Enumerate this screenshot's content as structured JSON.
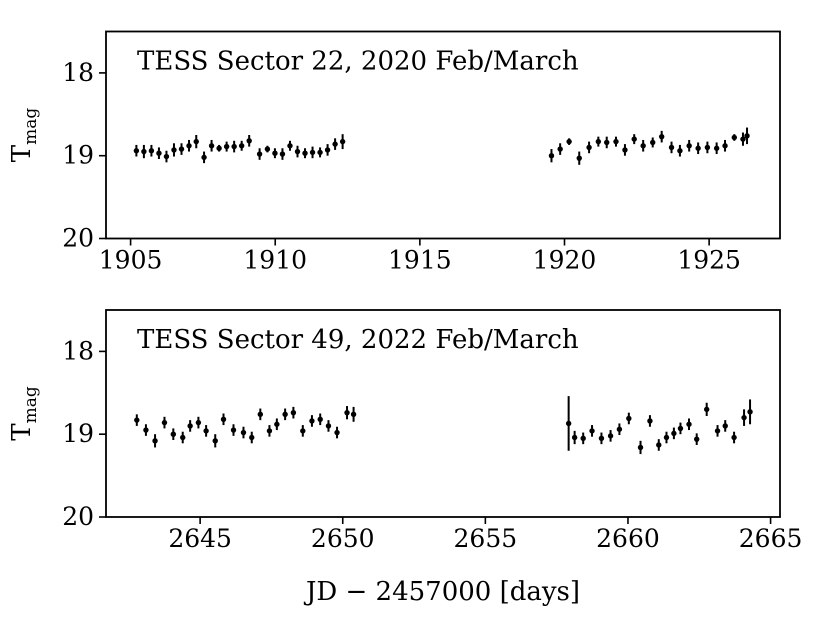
{
  "figure": {
    "background": "#ffffff",
    "foreground": "#000000",
    "xlabel": "JD − 2457000 [days]",
    "ylabel_base": "T",
    "ylabel_sub": "mag"
  },
  "chart_data": [
    {
      "type": "scatter",
      "title": "TESS Sector 22, 2020 Feb/March",
      "xlim": [
        1904.15,
        1927.45
      ],
      "ylim": [
        17.5,
        20.0
      ],
      "y_axis_inverted": true,
      "grid": false,
      "legend": "none",
      "xticks": [
        1905,
        1910,
        1915,
        1920,
        1925
      ],
      "yticks": [
        18,
        19,
        20
      ],
      "marker": "filled-circle-with-errorbar",
      "color": "#000000",
      "points_format": [
        "jd_minus_2457000_days",
        "t_mag",
        "err_mag"
      ],
      "points": [
        [
          1905.2,
          18.94,
          0.07
        ],
        [
          1905.46,
          18.95,
          0.08
        ],
        [
          1905.72,
          18.94,
          0.07
        ],
        [
          1905.98,
          18.97,
          0.07
        ],
        [
          1906.24,
          19.01,
          0.07
        ],
        [
          1906.5,
          18.93,
          0.08
        ],
        [
          1906.76,
          18.92,
          0.07
        ],
        [
          1907.02,
          18.88,
          0.07
        ],
        [
          1907.27,
          18.83,
          0.08
        ],
        [
          1907.54,
          19.02,
          0.07
        ],
        [
          1907.8,
          18.88,
          0.07
        ],
        [
          1908.06,
          18.91,
          0.04
        ],
        [
          1908.32,
          18.89,
          0.06
        ],
        [
          1908.58,
          18.89,
          0.07
        ],
        [
          1908.84,
          18.88,
          0.06
        ],
        [
          1909.1,
          18.82,
          0.07
        ],
        [
          1909.46,
          18.98,
          0.07
        ],
        [
          1909.73,
          18.92,
          0.04
        ],
        [
          1909.99,
          18.97,
          0.06
        ],
        [
          1910.25,
          18.98,
          0.07
        ],
        [
          1910.51,
          18.88,
          0.06
        ],
        [
          1910.77,
          18.95,
          0.07
        ],
        [
          1911.03,
          18.97,
          0.06
        ],
        [
          1911.29,
          18.96,
          0.07
        ],
        [
          1911.55,
          18.96,
          0.06
        ],
        [
          1911.81,
          18.93,
          0.07
        ],
        [
          1912.07,
          18.86,
          0.07
        ],
        [
          1912.33,
          18.83,
          0.09
        ],
        [
          1919.55,
          19.0,
          0.08
        ],
        [
          1919.85,
          18.92,
          0.07
        ],
        [
          1920.16,
          18.83,
          0.04
        ],
        [
          1920.51,
          19.03,
          0.08
        ],
        [
          1920.85,
          18.9,
          0.07
        ],
        [
          1921.17,
          18.83,
          0.06
        ],
        [
          1921.46,
          18.84,
          0.07
        ],
        [
          1921.78,
          18.83,
          0.06
        ],
        [
          1922.09,
          18.93,
          0.07
        ],
        [
          1922.41,
          18.8,
          0.06
        ],
        [
          1922.72,
          18.88,
          0.07
        ],
        [
          1923.05,
          18.84,
          0.06
        ],
        [
          1923.36,
          18.77,
          0.07
        ],
        [
          1923.7,
          18.9,
          0.07
        ],
        [
          1923.99,
          18.94,
          0.07
        ],
        [
          1924.31,
          18.88,
          0.07
        ],
        [
          1924.62,
          18.91,
          0.07
        ],
        [
          1924.94,
          18.9,
          0.07
        ],
        [
          1925.26,
          18.91,
          0.07
        ],
        [
          1925.55,
          18.88,
          0.07
        ],
        [
          1925.87,
          18.78,
          0.04
        ],
        [
          1926.17,
          18.8,
          0.08
        ],
        [
          1926.31,
          18.76,
          0.1
        ]
      ]
    },
    {
      "type": "scatter",
      "title": "TESS Sector 49, 2022 Feb/March",
      "xlim": [
        2641.7,
        2665.33
      ],
      "ylim": [
        17.5,
        20.0
      ],
      "y_axis_inverted": true,
      "grid": false,
      "legend": "none",
      "xticks": [
        2645,
        2650,
        2655,
        2660,
        2665
      ],
      "yticks": [
        18,
        19,
        20
      ],
      "marker": "filled-circle-with-errorbar",
      "color": "#000000",
      "points_format": [
        "jd_minus_2457000_days",
        "t_mag",
        "err_mag"
      ],
      "points": [
        [
          2642.78,
          18.83,
          0.07
        ],
        [
          2643.1,
          18.95,
          0.07
        ],
        [
          2643.42,
          19.08,
          0.08
        ],
        [
          2643.75,
          18.86,
          0.07
        ],
        [
          2644.06,
          19.0,
          0.07
        ],
        [
          2644.39,
          19.04,
          0.07
        ],
        [
          2644.65,
          18.9,
          0.07
        ],
        [
          2644.94,
          18.86,
          0.07
        ],
        [
          2645.21,
          18.96,
          0.07
        ],
        [
          2645.53,
          19.08,
          0.08
        ],
        [
          2645.82,
          18.82,
          0.07
        ],
        [
          2646.17,
          18.95,
          0.07
        ],
        [
          2646.52,
          18.98,
          0.07
        ],
        [
          2646.81,
          19.04,
          0.07
        ],
        [
          2647.11,
          18.76,
          0.07
        ],
        [
          2647.43,
          18.96,
          0.07
        ],
        [
          2647.69,
          18.88,
          0.07
        ],
        [
          2647.98,
          18.76,
          0.07
        ],
        [
          2648.27,
          18.74,
          0.07
        ],
        [
          2648.6,
          18.96,
          0.07
        ],
        [
          2648.92,
          18.84,
          0.07
        ],
        [
          2649.21,
          18.82,
          0.07
        ],
        [
          2649.5,
          18.9,
          0.07
        ],
        [
          2649.8,
          18.98,
          0.07
        ],
        [
          2650.15,
          18.74,
          0.08
        ],
        [
          2650.38,
          18.76,
          0.09
        ],
        [
          2657.92,
          18.87,
          0.33
        ],
        [
          2658.13,
          19.04,
          0.08
        ],
        [
          2658.43,
          19.05,
          0.07
        ],
        [
          2658.74,
          18.96,
          0.07
        ],
        [
          2659.07,
          19.05,
          0.07
        ],
        [
          2659.39,
          19.02,
          0.07
        ],
        [
          2659.7,
          18.94,
          0.07
        ],
        [
          2660.03,
          18.81,
          0.07
        ],
        [
          2660.44,
          19.16,
          0.08
        ],
        [
          2660.77,
          18.84,
          0.07
        ],
        [
          2661.08,
          19.13,
          0.07
        ],
        [
          2661.35,
          19.04,
          0.07
        ],
        [
          2661.61,
          18.99,
          0.07
        ],
        [
          2661.84,
          18.93,
          0.07
        ],
        [
          2662.14,
          18.88,
          0.07
        ],
        [
          2662.41,
          19.06,
          0.07
        ],
        [
          2662.76,
          18.7,
          0.08
        ],
        [
          2663.14,
          18.96,
          0.07
        ],
        [
          2663.41,
          18.9,
          0.07
        ],
        [
          2663.72,
          19.04,
          0.07
        ],
        [
          2664.07,
          18.8,
          0.1
        ],
        [
          2664.28,
          18.73,
          0.15
        ]
      ]
    }
  ]
}
